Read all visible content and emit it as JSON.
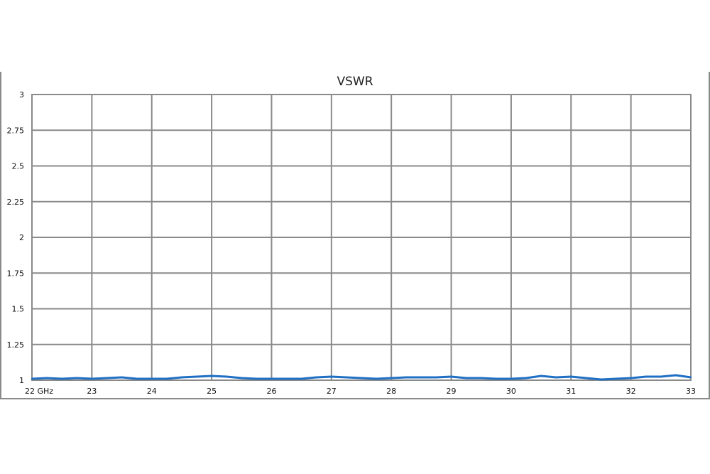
{
  "chart_data": {
    "type": "line",
    "title": "VSWR",
    "xlabel": "",
    "ylabel": "",
    "xlim": [
      22,
      33
    ],
    "ylim": [
      1,
      3
    ],
    "grid": true,
    "x_tick_labels": [
      "22 GHz",
      "23",
      "24",
      "25",
      "26",
      "27",
      "28",
      "29",
      "30",
      "31",
      "32",
      "33"
    ],
    "y_tick_labels": [
      "1",
      "1.25",
      "1.5",
      "1.75",
      "2",
      "2.25",
      "2.5",
      "2.75",
      "3"
    ],
    "line_color": "#1f6fc4",
    "series": [
      {
        "x": [
          22,
          22.25,
          22.5,
          22.75,
          23,
          23.25,
          23.5,
          23.75,
          24,
          24.25,
          24.5,
          24.75,
          25,
          25.25,
          25.5,
          25.75,
          26,
          26.25,
          26.5,
          26.75,
          27,
          27.25,
          27.5,
          27.75,
          28,
          28.25,
          28.5,
          28.75,
          29,
          29.25,
          29.5,
          29.75,
          30,
          30.25,
          30.5,
          30.75,
          31,
          31.25,
          31.5,
          31.75,
          32,
          32.25,
          32.5,
          32.75,
          33
        ],
        "y": [
          1.01,
          1.015,
          1.01,
          1.015,
          1.01,
          1.015,
          1.02,
          1.01,
          1.01,
          1.01,
          1.02,
          1.025,
          1.03,
          1.025,
          1.015,
          1.01,
          1.01,
          1.01,
          1.01,
          1.02,
          1.025,
          1.02,
          1.015,
          1.01,
          1.015,
          1.02,
          1.02,
          1.02,
          1.025,
          1.015,
          1.015,
          1.01,
          1.01,
          1.015,
          1.03,
          1.02,
          1.025,
          1.015,
          1.005,
          1.01,
          1.015,
          1.025,
          1.025,
          1.035,
          1.02
        ]
      }
    ]
  }
}
